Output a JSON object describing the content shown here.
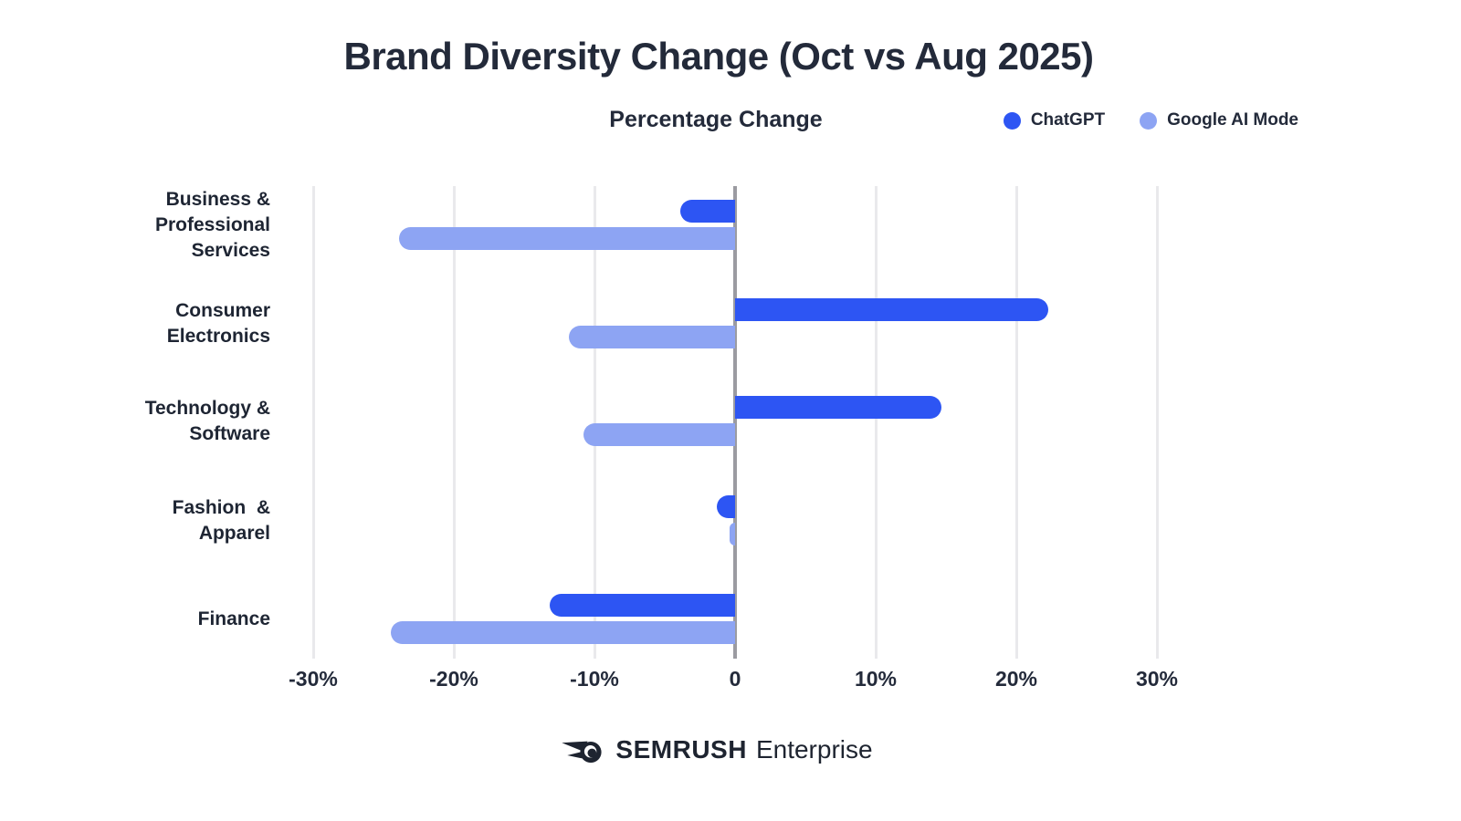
{
  "title": "Brand Diversity Change (Oct vs Aug 2025)",
  "subtitle": "Percentage Change",
  "legend": {
    "items": [
      {
        "label": "ChatGPT",
        "color": "#2D55F3"
      },
      {
        "label": "Google AI Mode",
        "color": "#8DA4F3"
      }
    ]
  },
  "footer": {
    "brand": "SEMRUSH",
    "suffix": "Enterprise"
  },
  "colors": {
    "chatgpt": "#2D55F3",
    "google_ai_mode": "#8DA4F3",
    "text": "#232A3A",
    "gridline": "#E9E9EC",
    "zero_line": "#9B9BA1",
    "background": "#FFFFFF"
  },
  "chart_data": {
    "type": "bar",
    "orientation": "horizontal",
    "title": "Brand Diversity Change (Oct vs Aug 2025)",
    "value_axis_label": "Percentage Change",
    "categories": [
      "Business & Professional Services",
      "Consumer Electronics",
      "Technology & Software",
      "Fashion & Apparel",
      "Finance"
    ],
    "category_lines": [
      [
        "Business &",
        "Professional",
        "Services"
      ],
      [
        "Consumer",
        "Electronics"
      ],
      [
        "Technology &",
        "Software"
      ],
      [
        "Fashion  &",
        "Apparel"
      ],
      [
        "Finance"
      ]
    ],
    "series": [
      {
        "name": "ChatGPT",
        "color": "#2D55F3",
        "values": [
          -3.9,
          22.3,
          14.7,
          -1.3,
          -13.2
        ]
      },
      {
        "name": "Google AI Mode",
        "color": "#8DA4F3",
        "values": [
          -23.9,
          -11.8,
          -10.8,
          -0.4,
          -24.5
        ]
      }
    ],
    "xlim": [
      -30,
      30
    ],
    "ticks": [
      {
        "value": -30,
        "label": "-30%"
      },
      {
        "value": -20,
        "label": "-20%"
      },
      {
        "value": -10,
        "label": "-10%"
      },
      {
        "value": 0,
        "label": "0"
      },
      {
        "value": 10,
        "label": "10%"
      },
      {
        "value": 20,
        "label": "20%"
      },
      {
        "value": 30,
        "label": "30%"
      }
    ],
    "grid": true,
    "legend_position": "top-right"
  }
}
